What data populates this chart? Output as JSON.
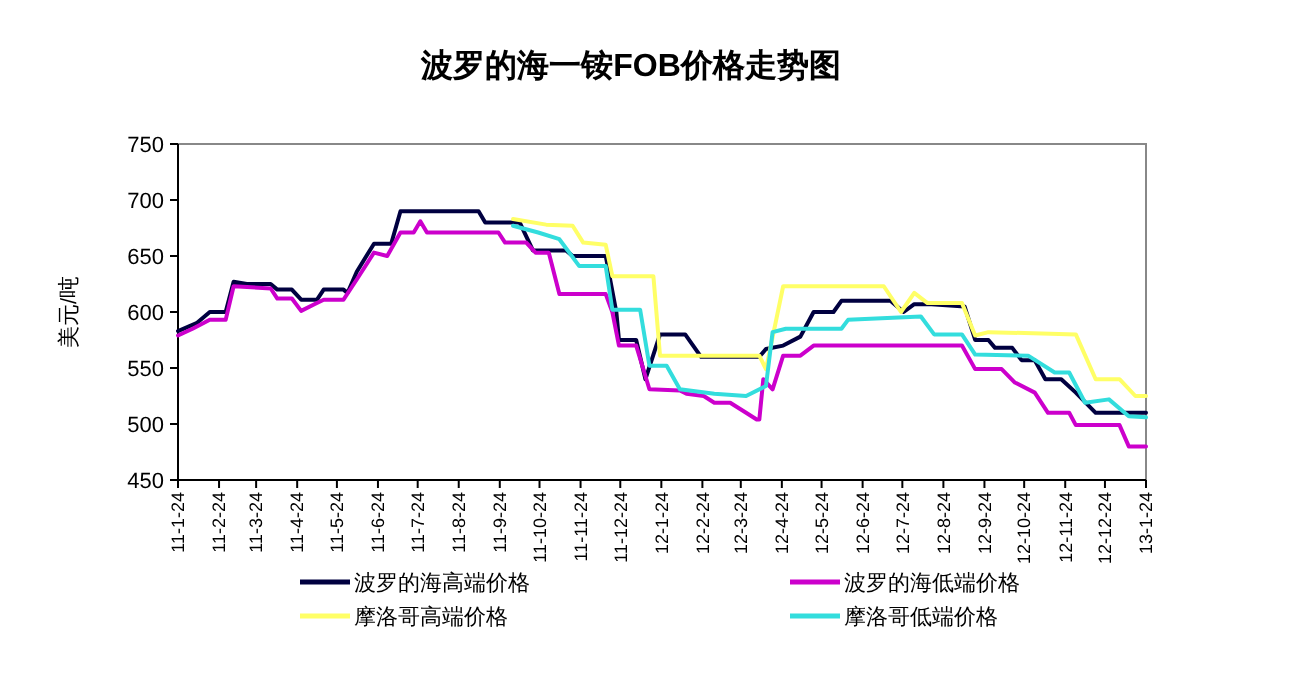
{
  "chart_data": {
    "type": "line",
    "title": "波罗的海一铵FOB价格走势图",
    "ylabel": "美元/吨",
    "legend": "bottom",
    "grid": false,
    "marker": "none",
    "line_style": "solid",
    "ylim": [
      450,
      750
    ],
    "yticks": [
      450,
      500,
      550,
      600,
      650,
      700,
      750
    ],
    "xlim": [
      "2011-01-24",
      "2013-01-24"
    ],
    "xticks": [
      {
        "value": "2011-01-24",
        "label": "11-1-24"
      },
      {
        "value": "2011-02-24",
        "label": "11-2-24"
      },
      {
        "value": "2011-03-24",
        "label": "11-3-24"
      },
      {
        "value": "2011-04-24",
        "label": "11-4-24"
      },
      {
        "value": "2011-05-24",
        "label": "11-5-24"
      },
      {
        "value": "2011-06-24",
        "label": "11-6-24"
      },
      {
        "value": "2011-07-24",
        "label": "11-7-24"
      },
      {
        "value": "2011-08-24",
        "label": "11-8-24"
      },
      {
        "value": "2011-09-24",
        "label": "11-9-24"
      },
      {
        "value": "2011-10-24",
        "label": "11-10-24"
      },
      {
        "value": "2011-11-24",
        "label": "11-11-24"
      },
      {
        "value": "2011-12-24",
        "label": "11-12-24"
      },
      {
        "value": "2012-01-24",
        "label": "12-1-24"
      },
      {
        "value": "2012-02-24",
        "label": "12-2-24"
      },
      {
        "value": "2012-03-24",
        "label": "12-3-24"
      },
      {
        "value": "2012-04-24",
        "label": "12-4-24"
      },
      {
        "value": "2012-05-24",
        "label": "12-5-24"
      },
      {
        "value": "2012-06-24",
        "label": "12-6-24"
      },
      {
        "value": "2012-07-24",
        "label": "12-7-24"
      },
      {
        "value": "2012-08-24",
        "label": "12-8-24"
      },
      {
        "value": "2012-09-24",
        "label": "12-9-24"
      },
      {
        "value": "2012-10-24",
        "label": "12-10-24"
      },
      {
        "value": "2012-11-24",
        "label": "12-11-24"
      },
      {
        "value": "2012-12-24",
        "label": "12-12-24"
      },
      {
        "value": "2013-01-24",
        "label": "13-1-24"
      }
    ],
    "series": [
      {
        "name": "波罗的海高端价格",
        "color": "#000040",
        "x": [
          "2011-01-24",
          "2011-02-07",
          "2011-02-17",
          "2011-03-01",
          "2011-03-07",
          "2011-03-17",
          "2011-04-04",
          "2011-04-09",
          "2011-04-20",
          "2011-04-27",
          "2011-05-09",
          "2011-05-14",
          "2011-05-29",
          "2011-06-01",
          "2011-06-08",
          "2011-06-21",
          "2011-07-04",
          "2011-07-11",
          "2011-09-08",
          "2011-09-13",
          "2011-10-09",
          "2011-10-19",
          "2011-11-13",
          "2011-11-18",
          "2011-12-13",
          "2011-12-21",
          "2011-12-23",
          "2012-01-05",
          "2012-01-12",
          "2012-01-23",
          "2012-02-11",
          "2012-02-23",
          "2012-04-07",
          "2012-04-12",
          "2012-04-25",
          "2012-05-08",
          "2012-05-18",
          "2012-06-02",
          "2012-06-08",
          "2012-07-15",
          "2012-07-25",
          "2012-08-02",
          "2012-08-15",
          "2012-09-09",
          "2012-09-17",
          "2012-09-27",
          "2012-10-02",
          "2012-10-15",
          "2012-10-22",
          "2012-11-01",
          "2012-11-09",
          "2012-11-21",
          "2012-12-02",
          "2012-12-17",
          "2013-01-24"
        ],
        "values": [
          583,
          590,
          600,
          600,
          627,
          625,
          625,
          620,
          620,
          611,
          611,
          620,
          620,
          617,
          636,
          661,
          661,
          690,
          690,
          680,
          680,
          655,
          655,
          650,
          650,
          600,
          575,
          575,
          540,
          580,
          580,
          560,
          560,
          567,
          570,
          578,
          600,
          600,
          610,
          610,
          600,
          607,
          607,
          605,
          575,
          575,
          568,
          568,
          557,
          557,
          540,
          540,
          528,
          510,
          510
        ]
      },
      {
        "name": "波罗的海低端价格",
        "color": "#cc00cc",
        "x": [
          "2011-01-24",
          "2011-02-04",
          "2011-02-17",
          "2011-03-01",
          "2011-03-07",
          "2011-04-04",
          "2011-04-09",
          "2011-04-20",
          "2011-04-27",
          "2011-05-07",
          "2011-05-14",
          "2011-05-29",
          "2011-06-08",
          "2011-06-21",
          "2011-07-01",
          "2011-07-11",
          "2011-07-21",
          "2011-07-26",
          "2011-07-31",
          "2011-09-23",
          "2011-09-28",
          "2011-10-14",
          "2011-10-21",
          "2011-10-31",
          "2011-11-08",
          "2011-12-13",
          "2011-12-18",
          "2011-12-23",
          "2012-01-05",
          "2012-01-15",
          "2012-02-07",
          "2012-02-12",
          "2012-02-25",
          "2012-03-04",
          "2012-03-16",
          "2012-03-28",
          "2012-04-05",
          "2012-04-07",
          "2012-04-10",
          "2012-04-17",
          "2012-04-25",
          "2012-05-08",
          "2012-05-18",
          "2012-09-07",
          "2012-09-17",
          "2012-10-07",
          "2012-10-17",
          "2012-11-01",
          "2012-11-11",
          "2012-11-27",
          "2012-12-02",
          "2013-01-04",
          "2013-01-11",
          "2013-01-24"
        ],
        "values": [
          579,
          585,
          593,
          593,
          623,
          621,
          612,
          612,
          601,
          607,
          611,
          611,
          629,
          653,
          650,
          671,
          671,
          681,
          671,
          671,
          662,
          662,
          653,
          653,
          616,
          616,
          600,
          570,
          570,
          531,
          530,
          527,
          525,
          519,
          519,
          510,
          504,
          504,
          540,
          531,
          561,
          561,
          570,
          570,
          549,
          549,
          537,
          528,
          510,
          510,
          499,
          499,
          480,
          480
        ]
      },
      {
        "name": "摩洛哥高端价格",
        "color": "#ffff66",
        "x": [
          "2011-10-04",
          "2011-10-29",
          "2011-11-18",
          "2011-11-26",
          "2011-12-13",
          "2011-12-18",
          "2012-01-18",
          "2012-01-23",
          "2012-04-07",
          "2012-04-12",
          "2012-04-25",
          "2012-07-10",
          "2012-07-23",
          "2012-08-02",
          "2012-08-12",
          "2012-09-07",
          "2012-09-17",
          "2012-09-27",
          "2012-12-02",
          "2012-12-17",
          "2013-01-04",
          "2013-01-16",
          "2013-01-24"
        ],
        "values": [
          683,
          678,
          677,
          662,
          660,
          632,
          632,
          561,
          561,
          549,
          623,
          623,
          600,
          617,
          608,
          608,
          579,
          582,
          580,
          540,
          540,
          525,
          525
        ]
      },
      {
        "name": "摩洛哥低端价格",
        "color": "#33dddd",
        "x": [
          "2011-10-04",
          "2011-10-23",
          "2011-11-08",
          "2011-11-23",
          "2011-12-13",
          "2011-12-18",
          "2012-01-08",
          "2012-01-15",
          "2012-01-28",
          "2012-02-07",
          "2012-03-04",
          "2012-03-28",
          "2012-04-12",
          "2012-04-17",
          "2012-04-27",
          "2012-06-08",
          "2012-06-13",
          "2012-08-07",
          "2012-08-17",
          "2012-09-07",
          "2012-09-17",
          "2012-10-27",
          "2012-11-16",
          "2012-11-27",
          "2012-12-09",
          "2012-12-27",
          "2013-01-11",
          "2013-01-24"
        ],
        "values": [
          677,
          671,
          665,
          641,
          641,
          602,
          602,
          552,
          552,
          531,
          527,
          525,
          534,
          582,
          585,
          585,
          593,
          596,
          580,
          580,
          562,
          561,
          546,
          546,
          519,
          522,
          507,
          506
        ]
      }
    ]
  }
}
